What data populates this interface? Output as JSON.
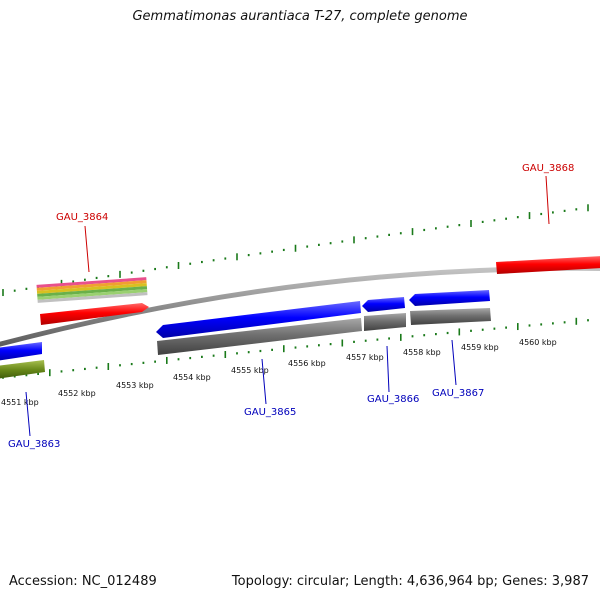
{
  "title": "Gemmatimonas aurantiaca T-27, complete genome",
  "footer": {
    "accession": "Accession: NC_012489",
    "summary": "Topology: circular; Length: 4,636,964 bp; Genes: 3,987"
  },
  "scale_labels": [
    "4551 kbp",
    "4552 kbp",
    "4553 kbp",
    "4554 kbp",
    "4555 kbp",
    "4556 kbp",
    "4557 kbp",
    "4558 kbp",
    "4559 kbp",
    "4560 kbp"
  ],
  "gene_labels": {
    "forward": [
      "GAU_3864",
      "GAU_3868"
    ],
    "reverse": [
      "GAU_3863",
      "GAU_3865",
      "GAU_3866",
      "GAU_3867"
    ]
  },
  "colors": {
    "forward_cds": "#ff0000",
    "reverse_cds": "#0000ff",
    "gene_track": "#6e6e6e",
    "backbone": "#8c8c8c",
    "tick": "#1a7a1a",
    "forward_label": "#cc0000",
    "reverse_label": "#0000bb",
    "annotation_bands": [
      "#e8508c",
      "#f0a030",
      "#d8c020",
      "#6ab04a",
      "#9ad070",
      "#c0c0c0"
    ],
    "olive_feature": "#6a8a1a"
  }
}
